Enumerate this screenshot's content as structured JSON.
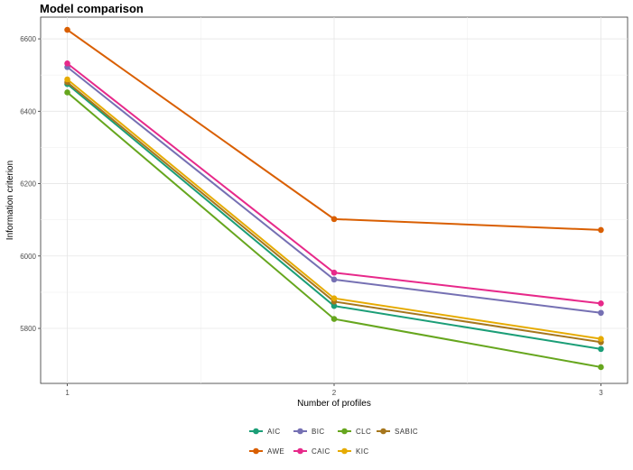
{
  "chart_data": {
    "type": "line",
    "title": "Model comparison",
    "xlabel": "Number of profiles",
    "ylabel": "Information criterion",
    "x": [
      1,
      2,
      3
    ],
    "xticks": [
      "1",
      "2",
      "3"
    ],
    "xlim": [
      0.9,
      3.1
    ],
    "yticks": [
      5800,
      6000,
      6200,
      6400,
      6600
    ],
    "ylim": [
      5648,
      6660
    ],
    "grid": true,
    "legend_position": "bottom",
    "series": [
      {
        "name": "AIC",
        "color": "#1B9E77",
        "values": [
          6475,
          5862,
          5743
        ]
      },
      {
        "name": "BIC",
        "color": "#7570B3",
        "values": [
          6522,
          5935,
          5843
        ]
      },
      {
        "name": "CLC",
        "color": "#66A61E",
        "values": [
          6452,
          5826,
          5693
        ]
      },
      {
        "name": "SABIC",
        "color": "#A6761D",
        "values": [
          6480,
          5874,
          5762
        ]
      },
      {
        "name": "AWE",
        "color": "#D95F02",
        "values": [
          6625,
          6102,
          6072
        ]
      },
      {
        "name": "CAIC",
        "color": "#E7298A",
        "values": [
          6532,
          5954,
          5869
        ]
      },
      {
        "name": "KIC",
        "color": "#E6AB02",
        "values": [
          6488,
          5883,
          5771
        ]
      }
    ]
  }
}
